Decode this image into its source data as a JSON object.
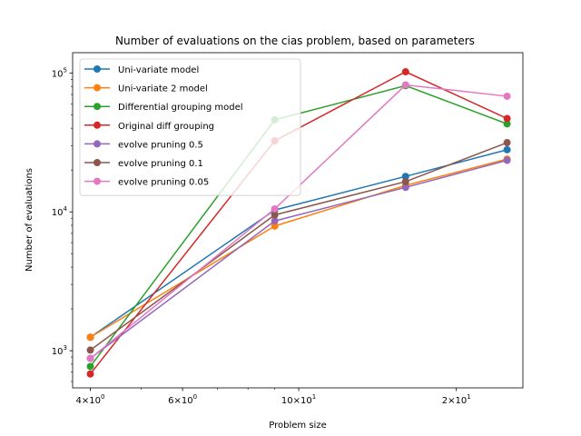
{
  "chart_data": {
    "type": "line",
    "title": "Number of evaluations on the cias problem, based on parameters",
    "xlabel": "Problem size",
    "ylabel": "Number of evaluations",
    "xscale": "log",
    "yscale": "log",
    "xlim": [
      3.7,
      26.8
    ],
    "ylim": [
      540,
      140000
    ],
    "x": [
      4,
      9,
      16,
      25
    ],
    "x_ticks_major": [
      {
        "value": 4,
        "base": "4",
        "sup": "0"
      },
      {
        "value": 6,
        "base": "6",
        "sup": "0"
      },
      {
        "value": 10,
        "base": "10",
        "sup": "1"
      },
      {
        "value": 20,
        "base": "2",
        "sup": "1"
      }
    ],
    "x_ticks_minor": [
      3,
      5,
      7,
      8,
      9,
      30,
      40
    ],
    "y_ticks_major": [
      {
        "value": 1000,
        "base": "10",
        "sup": "3"
      },
      {
        "value": 10000,
        "base": "10",
        "sup": "4"
      },
      {
        "value": 100000,
        "base": "10",
        "sup": "5"
      }
    ],
    "legend_position": "top-left",
    "grid": false,
    "series": [
      {
        "name": "Uni-variate model",
        "color": "#1f77b4",
        "values": [
          1250,
          10300,
          18000,
          28000
        ]
      },
      {
        "name": "Uni-variate 2 model",
        "color": "#ff7f0e",
        "values": [
          1250,
          7900,
          15500,
          24000
        ]
      },
      {
        "name": "Differential grouping model",
        "color": "#2ca02c",
        "values": [
          770,
          46000,
          81000,
          43000
        ]
      },
      {
        "name": "Original diff grouping",
        "color": "#d62728",
        "values": [
          680,
          32500,
          102000,
          47000
        ]
      },
      {
        "name": "evolve pruning 0.5",
        "color": "#9467bd",
        "values": [
          880,
          8600,
          15000,
          23500
        ]
      },
      {
        "name": "evolve pruning 0.1",
        "color": "#8c564b",
        "values": [
          1010,
          9500,
          16500,
          31500
        ]
      },
      {
        "name": "evolve pruning 0.05",
        "color": "#e377c2",
        "values": [
          880,
          10500,
          82000,
          68000
        ]
      }
    ]
  }
}
